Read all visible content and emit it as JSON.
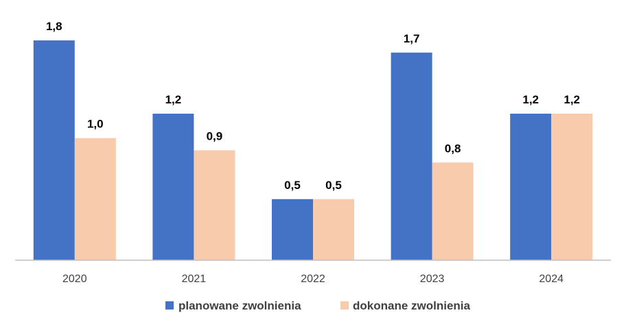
{
  "chart_data": {
    "type": "bar",
    "categories": [
      "2020",
      "2021",
      "2022",
      "2023",
      "2024"
    ],
    "series": [
      {
        "name": "planowane zwolnienia",
        "values": [
          1.8,
          1.2,
          0.5,
          1.7,
          1.2
        ],
        "labels": [
          "1,8",
          "1,2",
          "0,5",
          "1,7",
          "1,2"
        ],
        "color": "#4472C4"
      },
      {
        "name": "dokonane zwolnienia",
        "values": [
          1.0,
          0.9,
          0.5,
          0.8,
          1.2
        ],
        "labels": [
          "1,0",
          "0,9",
          "0,5",
          "0,8",
          "1,2"
        ],
        "color": "#F8CBAD"
      }
    ],
    "ylim": [
      0,
      1.8
    ],
    "grid": false,
    "legend_position": "bottom",
    "title": "",
    "xlabel": "",
    "ylabel": ""
  },
  "colors": {
    "axis": "#BFBFBF"
  }
}
